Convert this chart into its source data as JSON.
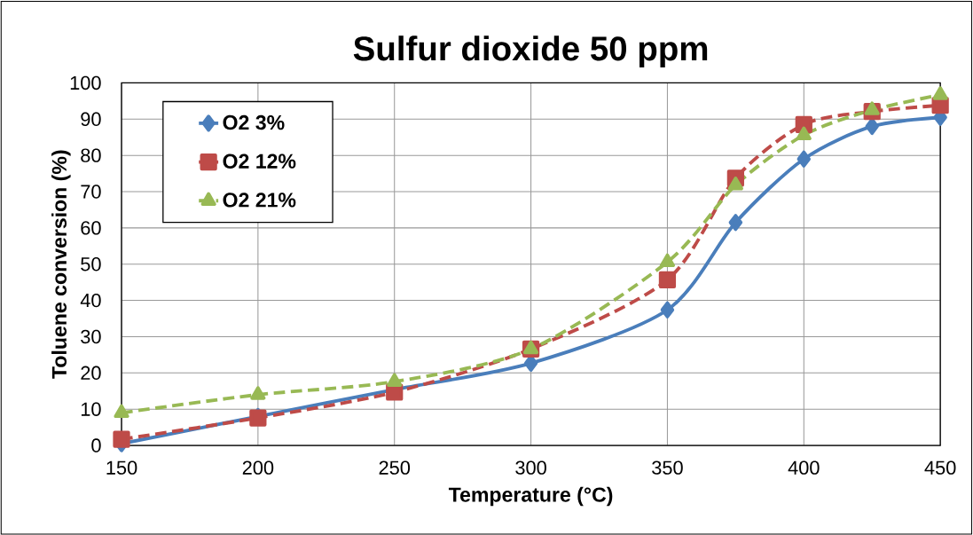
{
  "chart_data": {
    "type": "line",
    "title": "Sulfur dioxide 50 ppm",
    "xlabel": "Temperature (°C)",
    "ylabel": "Toluene conversion (%)",
    "x": [
      150,
      200,
      250,
      300,
      350,
      375,
      400,
      425,
      450
    ],
    "series": [
      {
        "name": "O2 3%",
        "color": "#4a7ebb",
        "marker": "diamond",
        "line_style": "solid",
        "values": [
          0.5,
          8,
          15.4,
          22.7,
          37.4,
          61.5,
          79,
          88,
          90.5
        ]
      },
      {
        "name": "O2 12%",
        "color": "#be4b48",
        "marker": "square",
        "line_style": "dashed",
        "values": [
          1.7,
          7.6,
          14.7,
          26.6,
          45.7,
          73.7,
          88.5,
          92.1,
          93.8
        ]
      },
      {
        "name": "O2 21%",
        "color": "#98b954",
        "marker": "triangle",
        "line_style": "dashed",
        "values": [
          9,
          14,
          17.6,
          26.6,
          50.6,
          71.8,
          85.6,
          92.5,
          96.7
        ]
      }
    ],
    "xlim": [
      150,
      450
    ],
    "xticks": [
      150,
      200,
      250,
      300,
      350,
      400,
      450
    ],
    "ylim": [
      0,
      100
    ],
    "yticks": [
      0,
      10,
      20,
      30,
      40,
      50,
      60,
      70,
      80,
      90,
      100
    ],
    "grid": true,
    "legend": "top left"
  }
}
